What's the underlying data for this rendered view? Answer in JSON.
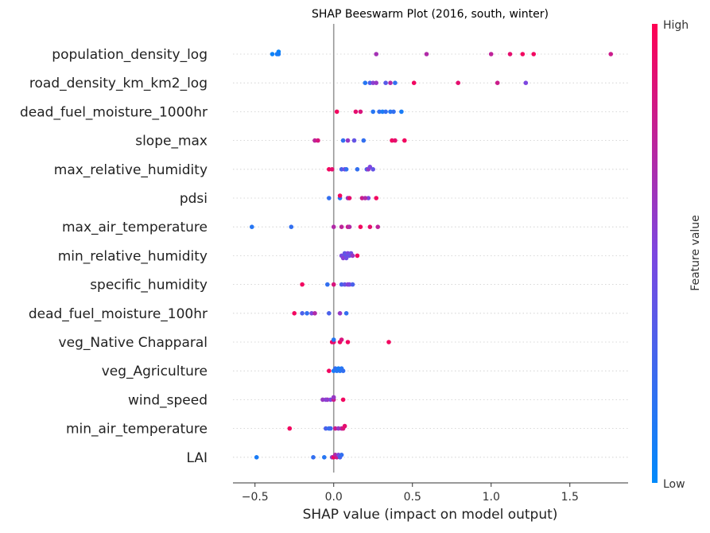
{
  "chart_data": {
    "type": "scatter",
    "title": "SHAP Beeswarm Plot (2016, south, winter)",
    "xlabel": "SHAP value (impact on model output)",
    "xlim": [
      -0.64,
      1.87
    ],
    "xticks": [
      -0.5,
      0.0,
      0.5,
      1.0,
      1.5
    ],
    "xtick_labels": [
      "−0.5",
      "0.0",
      "0.5",
      "1.0",
      "1.5"
    ],
    "grid": "dotted horizontal per feature",
    "colorbar": {
      "label": "Feature value",
      "high": "High",
      "low": "Low",
      "color_high": "#ff0052",
      "color_low": "#008afb"
    },
    "features": [
      {
        "name": "population_density_log",
        "points": [
          [
            -0.35,
            0.1
          ],
          [
            -0.35,
            0.05
          ],
          [
            -0.39,
            0.05
          ],
          [
            -0.36,
            0.1
          ],
          [
            0.27,
            0.65
          ],
          [
            0.59,
            0.7
          ],
          [
            1.0,
            0.75
          ],
          [
            1.12,
            0.9
          ],
          [
            1.2,
            0.95
          ],
          [
            1.27,
            0.95
          ],
          [
            1.76,
            0.8
          ]
        ]
      },
      {
        "name": "road_density_km_km2_log",
        "points": [
          [
            0.2,
            0.15
          ],
          [
            0.23,
            0.3
          ],
          [
            0.25,
            0.55
          ],
          [
            0.27,
            0.6
          ],
          [
            0.33,
            0.35
          ],
          [
            0.36,
            0.7
          ],
          [
            0.39,
            0.2
          ],
          [
            0.51,
            0.95
          ],
          [
            0.79,
            0.9
          ],
          [
            1.04,
            0.8
          ],
          [
            1.22,
            0.5
          ]
        ]
      },
      {
        "name": "dead_fuel_moisture_1000hr",
        "points": [
          [
            0.02,
            0.95
          ],
          [
            0.14,
            0.9
          ],
          [
            0.17,
            0.85
          ],
          [
            0.25,
            0.15
          ],
          [
            0.29,
            0.2
          ],
          [
            0.31,
            0.1
          ],
          [
            0.33,
            0.2
          ],
          [
            0.36,
            0.15
          ],
          [
            0.38,
            0.2
          ],
          [
            0.43,
            0.1
          ]
        ]
      },
      {
        "name": "slope_max",
        "points": [
          [
            -0.12,
            0.75
          ],
          [
            -0.1,
            0.85
          ],
          [
            0.06,
            0.2
          ],
          [
            0.09,
            0.6
          ],
          [
            0.13,
            0.4
          ],
          [
            0.19,
            0.2
          ],
          [
            0.37,
            0.95
          ],
          [
            0.39,
            0.9
          ],
          [
            0.45,
            0.95
          ]
        ]
      },
      {
        "name": "max_relative_humidity",
        "points": [
          [
            -0.03,
            0.95
          ],
          [
            -0.01,
            0.9
          ],
          [
            0.05,
            0.3
          ],
          [
            0.07,
            0.5
          ],
          [
            0.08,
            0.2
          ],
          [
            0.15,
            0.2
          ],
          [
            0.21,
            0.3
          ],
          [
            0.22,
            0.6
          ],
          [
            0.23,
            0.5
          ],
          [
            0.25,
            0.4
          ]
        ]
      },
      {
        "name": "pdsi",
        "points": [
          [
            -0.03,
            0.2
          ],
          [
            0.04,
            0.15
          ],
          [
            0.04,
            0.95
          ],
          [
            0.09,
            0.6
          ],
          [
            0.1,
            0.9
          ],
          [
            0.18,
            0.8
          ],
          [
            0.22,
            0.5
          ],
          [
            0.2,
            0.7
          ],
          [
            0.27,
            0.95
          ]
        ]
      },
      {
        "name": "max_air_temperature",
        "points": [
          [
            -0.52,
            0.15
          ],
          [
            -0.27,
            0.2
          ],
          [
            0.0,
            0.7
          ],
          [
            0.05,
            0.75
          ],
          [
            0.09,
            0.8
          ],
          [
            0.1,
            0.7
          ],
          [
            0.17,
            0.95
          ],
          [
            0.23,
            0.9
          ],
          [
            0.28,
            0.75
          ]
        ]
      },
      {
        "name": "min_relative_humidity",
        "points": [
          [
            0.05,
            0.5
          ],
          [
            0.06,
            0.45
          ],
          [
            0.07,
            0.4
          ],
          [
            0.08,
            0.35
          ],
          [
            0.09,
            0.5
          ],
          [
            0.1,
            0.4
          ],
          [
            0.11,
            0.45
          ],
          [
            0.06,
            0.55
          ],
          [
            0.08,
            0.45
          ],
          [
            0.12,
            0.6
          ],
          [
            0.15,
            0.95
          ]
        ]
      },
      {
        "name": "specific_humidity",
        "points": [
          [
            -0.2,
            0.95
          ],
          [
            -0.04,
            0.2
          ],
          [
            0.0,
            0.85
          ],
          [
            0.05,
            0.3
          ],
          [
            0.07,
            0.4
          ],
          [
            0.09,
            0.55
          ],
          [
            0.1,
            0.5
          ],
          [
            0.12,
            0.3
          ]
        ]
      },
      {
        "name": "dead_fuel_moisture_100hr",
        "points": [
          [
            -0.25,
            0.95
          ],
          [
            -0.2,
            0.3
          ],
          [
            -0.17,
            0.2
          ],
          [
            -0.14,
            0.5
          ],
          [
            -0.12,
            0.7
          ],
          [
            -0.03,
            0.3
          ],
          [
            0.04,
            0.6
          ],
          [
            0.08,
            0.2
          ]
        ]
      },
      {
        "name": "veg_Native Chapparal ",
        "points": [
          [
            -0.01,
            0.95
          ],
          [
            0.0,
            0.9
          ],
          [
            0.0,
            0.15
          ],
          [
            0.04,
            0.95
          ],
          [
            0.05,
            0.85
          ],
          [
            0.09,
            0.95
          ],
          [
            0.35,
            0.95
          ]
        ]
      },
      {
        "name": "veg_Agriculture ",
        "points": [
          [
            0.04,
            0.15
          ],
          [
            -0.03,
            0.95
          ],
          [
            0.0,
            0.1
          ],
          [
            0.01,
            0.2
          ],
          [
            0.02,
            0.15
          ],
          [
            0.03,
            0.1
          ],
          [
            0.05,
            0.15
          ],
          [
            0.06,
            0.2
          ]
        ]
      },
      {
        "name": "wind_speed",
        "points": [
          [
            -0.04,
            0.65
          ],
          [
            -0.07,
            0.6
          ],
          [
            -0.05,
            0.55
          ],
          [
            -0.02,
            0.5
          ],
          [
            0.0,
            0.8
          ],
          [
            0.0,
            0.6
          ],
          [
            0.06,
            0.95
          ]
        ]
      },
      {
        "name": "min_air_temperature",
        "points": [
          [
            -0.28,
            0.95
          ],
          [
            -0.05,
            0.3
          ],
          [
            -0.03,
            0.2
          ],
          [
            -0.02,
            0.25
          ],
          [
            0.01,
            0.8
          ],
          [
            0.03,
            0.6
          ],
          [
            0.05,
            0.7
          ],
          [
            0.06,
            0.85
          ],
          [
            0.07,
            0.9
          ]
        ]
      },
      {
        "name": "LAI",
        "points": [
          [
            -0.49,
            0.1
          ],
          [
            -0.13,
            0.2
          ],
          [
            -0.06,
            0.15
          ],
          [
            -0.01,
            0.6
          ],
          [
            0.0,
            0.95
          ],
          [
            0.01,
            0.7
          ],
          [
            0.02,
            0.8
          ],
          [
            0.03,
            0.5
          ],
          [
            0.04,
            0.3
          ],
          [
            0.05,
            0.2
          ]
        ]
      }
    ]
  }
}
